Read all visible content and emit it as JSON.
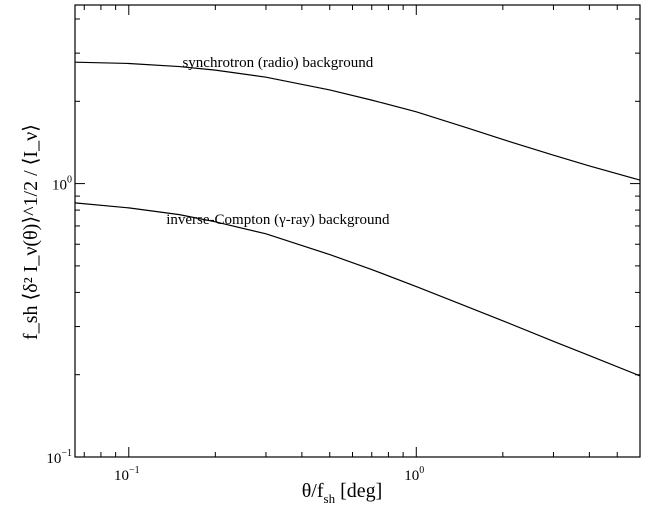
{
  "chart_data": {
    "type": "line",
    "xscale": "log",
    "yscale": "log",
    "xlim": [
      0.065,
      6.0
    ],
    "ylim": [
      0.1,
      4.5
    ],
    "xlabel": "θ/f",
    "xlabel_sub": "sh",
    "xlabel_unit": " [deg]",
    "ylabel": "f_sh ⟨δ² I_ν(θ)⟩^1/2 / ⟨I_ν⟩",
    "xticks": [
      {
        "value": 0.1,
        "base": "10",
        "exp": "−1"
      },
      {
        "value": 1.0,
        "base": "10",
        "exp": "0"
      }
    ],
    "yticks": [
      {
        "value": 0.1,
        "base": "10",
        "exp": "−1"
      },
      {
        "value": 1.0,
        "base": "10",
        "exp": "0"
      }
    ],
    "series": [
      {
        "name": "synchrotron (radio) background",
        "x": [
          0.065,
          0.1,
          0.15,
          0.2,
          0.3,
          0.5,
          0.7,
          1.0,
          1.5,
          2.0,
          3.0,
          4.0,
          6.0
        ],
        "y": [
          2.78,
          2.75,
          2.68,
          2.6,
          2.45,
          2.2,
          2.02,
          1.83,
          1.6,
          1.45,
          1.27,
          1.16,
          1.03
        ]
      },
      {
        "name": "inverse-Compton (γ-ray) background",
        "x": [
          0.065,
          0.1,
          0.15,
          0.2,
          0.3,
          0.5,
          0.7,
          1.0,
          1.5,
          2.0,
          3.0,
          4.0,
          6.0
        ],
        "y": [
          0.85,
          0.815,
          0.77,
          0.725,
          0.655,
          0.55,
          0.485,
          0.42,
          0.355,
          0.315,
          0.265,
          0.235,
          0.198
        ]
      }
    ]
  }
}
